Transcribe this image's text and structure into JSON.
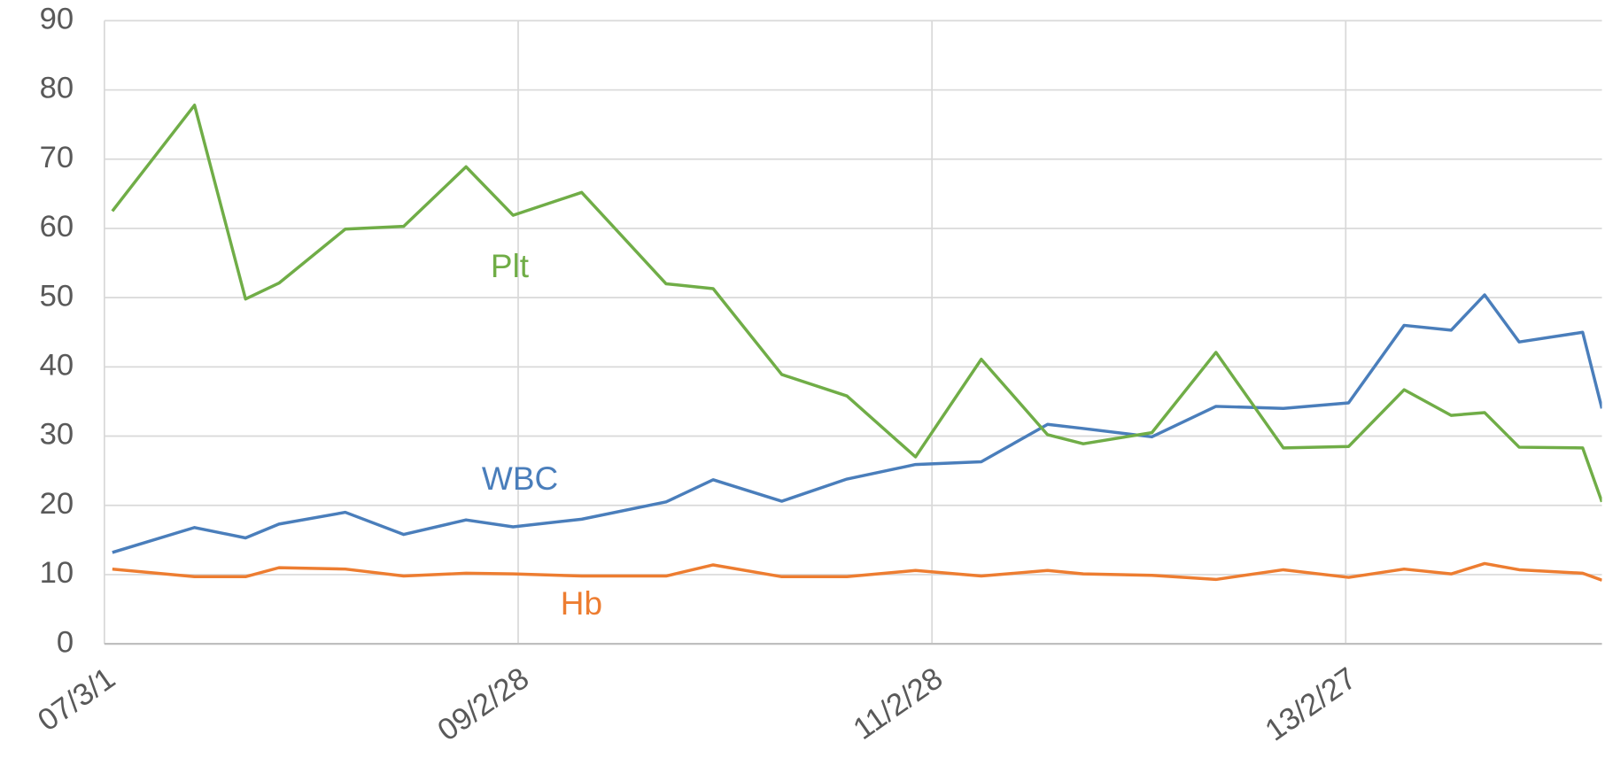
{
  "chart_data": {
    "type": "line",
    "x": [
      "2007-03-15",
      "2007-08-07",
      "2007-11-05",
      "2008-01-03",
      "2008-04-29",
      "2008-08-10",
      "2008-11-28",
      "2009-02-19",
      "2009-06-20",
      "2009-11-16",
      "2010-02-07",
      "2010-06-08",
      "2010-10-01",
      "2011-01-30",
      "2011-05-26",
      "2011-09-20",
      "2011-11-22",
      "2012-03-22",
      "2012-07-13",
      "2012-11-09",
      "2013-03-04",
      "2013-06-10",
      "2013-09-01",
      "2013-10-30",
      "2013-12-30",
      "2014-04-21",
      "2014-05-25"
    ],
    "series": [
      {
        "name": "WBC",
        "color": "#4a7ebb",
        "values": [
          13.2,
          16.8,
          15.3,
          17.3,
          19.0,
          15.8,
          17.9,
          16.9,
          18.0,
          20.5,
          23.7,
          20.6,
          23.8,
          25.9,
          26.3,
          31.7,
          31.1,
          29.9,
          34.3,
          34.0,
          34.8,
          46.0,
          45.3,
          50.4,
          43.6,
          45.0,
          34.0
        ]
      },
      {
        "name": "Plt",
        "color": "#70ad47",
        "values": [
          62.5,
          77.8,
          49.8,
          52.1,
          59.9,
          60.3,
          68.9,
          61.9,
          65.2,
          52.0,
          51.3,
          38.9,
          35.8,
          27.0,
          41.1,
          30.2,
          28.9,
          30.5,
          42.1,
          28.3,
          28.5,
          36.7,
          33.0,
          33.4,
          28.4,
          28.3,
          20.5
        ]
      },
      {
        "name": "Hb",
        "color": "#ed7d31",
        "values": [
          10.8,
          9.7,
          9.7,
          11.0,
          10.8,
          9.8,
          10.2,
          10.1,
          9.8,
          9.8,
          11.4,
          9.7,
          9.7,
          10.6,
          9.8,
          10.6,
          10.1,
          9.9,
          9.3,
          10.7,
          9.6,
          10.8,
          10.1,
          11.6,
          10.7,
          10.2,
          9.2
        ]
      }
    ],
    "xlim": [
      "2007-03-01",
      "2014-05-25"
    ],
    "xticks": [
      {
        "value": "2007-03-01",
        "label": "07/3/1"
      },
      {
        "value": "2009-02-28",
        "label": "09/2/28"
      },
      {
        "value": "2011-02-28",
        "label": "11/2/28"
      },
      {
        "value": "2013-02-27",
        "label": "13/2/27"
      }
    ],
    "ylim": [
      0,
      90
    ],
    "yticks": [
      0,
      10,
      20,
      30,
      40,
      50,
      60,
      70,
      80,
      90
    ],
    "grid": true
  }
}
